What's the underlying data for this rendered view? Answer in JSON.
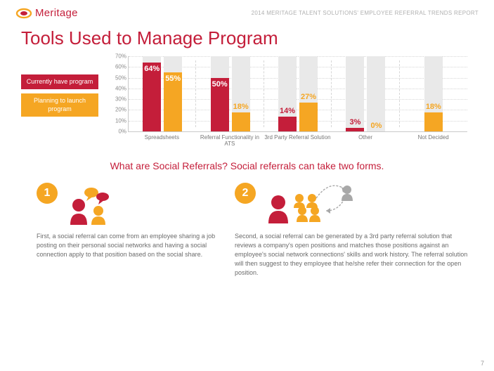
{
  "header": {
    "brand": "Meritage",
    "report_title": "2014 MERITAGE TALENT SOLUTIONS' EMPLOYEE REFERRAL TRENDS REPORT"
  },
  "main_title": "Tools Used to Manage Program",
  "legend": {
    "current": "Currently have program",
    "planning": "Planning to launch program"
  },
  "chart": {
    "type": "bar",
    "ymax": 70,
    "ytick_step": 10,
    "series_colors": {
      "current": "#c41e3a",
      "planning": "#f5a623"
    },
    "bg_bar_color": "#e9e9e9",
    "grid_color": "#d6d6d6",
    "categories": [
      {
        "label": "Spreadsheets",
        "current": 64,
        "planning": 55
      },
      {
        "label": "Referral Functionality in ATS",
        "current": 50,
        "planning": 18
      },
      {
        "label": "3rd Party Referral Solution",
        "current": 14,
        "planning": 27
      },
      {
        "label": "Other",
        "current": 3,
        "planning": 0
      },
      {
        "label": "Not Decided",
        "current": null,
        "planning": 18
      }
    ]
  },
  "subhead": "What are Social Referrals? Social referrals can take two forms.",
  "infographic": {
    "item1": {
      "num": "1",
      "text": "First, a social referral can come from an employee sharing a job posting on their personal social networks and having a social connection apply to that position based on the social share."
    },
    "item2": {
      "num": "2",
      "text": "Second, a social referral can be generated by a 3rd party referral solution that reviews a company's open positions and matches those positions against an employee's social network connections' skills and work history.  The referral solution will then suggest to they employee that he/she refer their connection for the open position."
    }
  },
  "page_number": "7",
  "colors": {
    "brand_red": "#c41e3a",
    "brand_orange": "#f5a623",
    "grey": "#a8a8a8"
  }
}
